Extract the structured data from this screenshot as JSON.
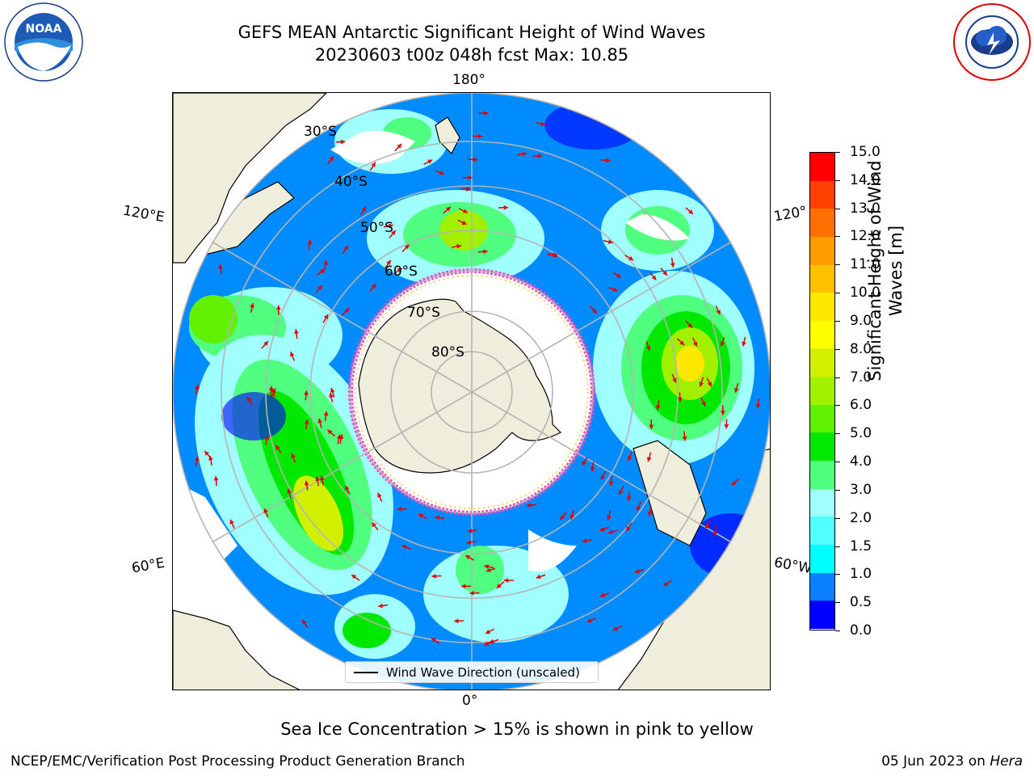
{
  "title": {
    "line1": "GEFS MEAN Antarctic Significant Height of Wind Waves",
    "line2": "20230603 t00z 048h fcst   Max: 10.85"
  },
  "logos": {
    "left": "NOAA",
    "left_ring": "NATIONAL OCEANIC AND ATMOSPHERIC ADMINISTRATION · U.S. DEPARTMENT OF COMMERCE",
    "right_ring": "NATIONAL WEATHER SERVICE"
  },
  "map": {
    "projection": "south-polar-stereographic",
    "lon_labels": {
      "top": "180°",
      "bottom": "0°",
      "left_upper": "120°E",
      "left_lower": "60°E",
      "right_upper": "120°",
      "right_lower": "60°W"
    },
    "lat_labels": [
      "30°S",
      "40°S",
      "50°S",
      "60°S",
      "70°S",
      "80°S"
    ],
    "legend_label": "Wind Wave Direction (unscaled)",
    "colors": {
      "land": "#efeddc",
      "ice_edge": "#ff44cc",
      "arrow": "#e00000",
      "grid": "#b4b4b4"
    }
  },
  "colorbar": {
    "label": "Significant Height of Wind Waves [m]",
    "ticks": [
      "0.0",
      "0.5",
      "1.0",
      "1.5",
      "2.0",
      "3.0",
      "4.0",
      "5.0",
      "6.0",
      "7.0",
      "8.0",
      "9.0",
      "10.0",
      "11.0",
      "12.0",
      "13.0",
      "14.0",
      "15.0"
    ],
    "colors": [
      "#0000ff",
      "#0a80ff",
      "#00ffff",
      "#50ffff",
      "#a0ffff",
      "#50ff80",
      "#00e800",
      "#60f000",
      "#a0f000",
      "#d0f000",
      "#ffff00",
      "#ffe800",
      "#ffc000",
      "#ff9c00",
      "#ff7000",
      "#ff4000",
      "#ff0000"
    ]
  },
  "caption": "Sea Ice Concentration > 15% is shown in pink to yellow",
  "footer": {
    "left": "NCEP/EMC/Verification Post Processing Product Generation Branch",
    "right_date": "05 Jun 2023 on",
    "right_host": "Hera"
  }
}
